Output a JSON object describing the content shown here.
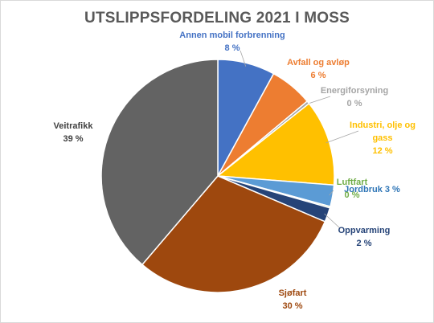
{
  "chart_data": {
    "type": "pie",
    "title": "UTSLIPPSFORDELING  2021 I MOSS",
    "slices": [
      {
        "name": "Annen mobil forbrenning",
        "value": 8,
        "label": "8 %",
        "color": "#4472C4",
        "text_color": "#4472C4"
      },
      {
        "name": "Avfall  og avløp",
        "value": 6,
        "label": "6 %",
        "color": "#ED7D31",
        "text_color": "#ED7D31"
      },
      {
        "name": "Energiforsyning",
        "value": 0.4,
        "label": "0 %",
        "color": "#A5A5A5",
        "text_color": "#A5A5A5"
      },
      {
        "name": "Industri, olje og gass",
        "value": 12,
        "label": "12 %",
        "color": "#FFC000",
        "text_color": "#FFC000"
      },
      {
        "name": "Jordbruk",
        "value": 3,
        "label": "3 %",
        "color": "#5B9BD5",
        "text_color": "#2E75B6"
      },
      {
        "name": "Luftfart",
        "value": 0.2,
        "label": "0 %",
        "color": "#70AD47",
        "text_color": "#70AD47"
      },
      {
        "name": "Oppvarming",
        "value": 2,
        "label": "2 %",
        "color": "#264478",
        "text_color": "#264478"
      },
      {
        "name": "Sjøfart",
        "value": 30,
        "label": "30 %",
        "color": "#9E480E",
        "text_color": "#9E480E"
      },
      {
        "name": "Veitrafikk",
        "value": 39,
        "label": "39 %",
        "color": "#636363",
        "text_color": "#404040"
      }
    ],
    "legend": "none"
  }
}
